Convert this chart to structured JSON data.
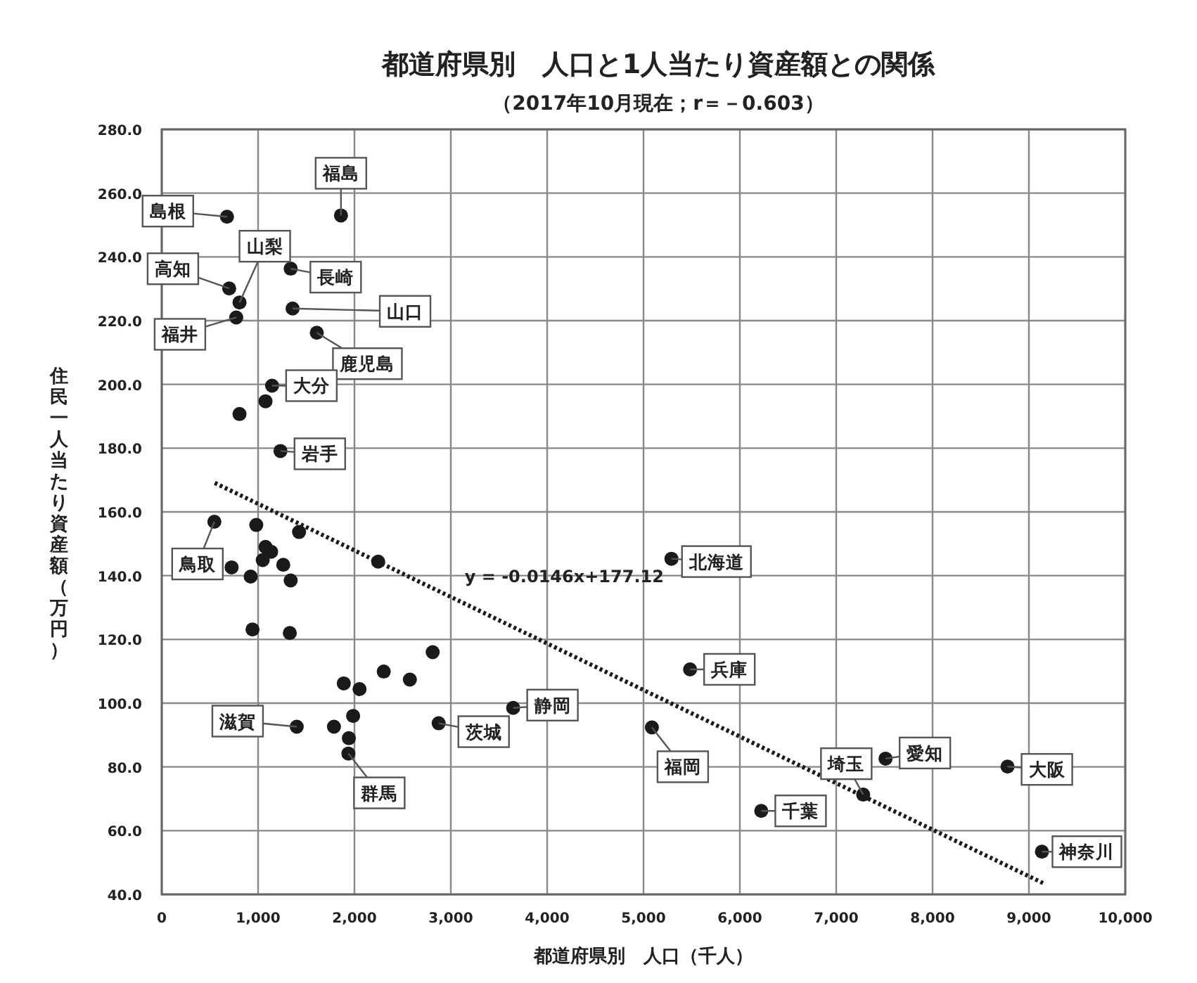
{
  "chart_data": {
    "type": "scatter",
    "title": "都道府県別　人口と1人当たり資産額との関係",
    "subtitle": "（2017年10月現在；r＝－0.603）",
    "xlabel": "都道府県別　人口（千人）",
    "ylabel": "住民一人当たり資産額（万円）",
    "xlim": [
      0,
      10000
    ],
    "ylim": [
      40,
      280
    ],
    "xticks": [
      0,
      {
        "value": 1000,
        "label": "1,000"
      },
      {
        "value": 2000,
        "label": "2,000"
      },
      {
        "value": 3000,
        "label": "3,000"
      },
      {
        "value": 4000,
        "label": "4,000"
      },
      {
        "value": 5000,
        "label": "5,000"
      },
      {
        "value": 6000,
        "label": "6,000"
      },
      {
        "value": 7000,
        "label": "7,000"
      },
      {
        "value": 8000,
        "label": "8,000"
      },
      {
        "value": 9000,
        "label": "9,000"
      },
      {
        "value": 10000,
        "label": "10,000"
      }
    ],
    "yticks": [
      {
        "value": 40,
        "label": "40.0"
      },
      {
        "value": 60,
        "label": "60.0"
      },
      {
        "value": 80,
        "label": "80.0"
      },
      {
        "value": 100,
        "label": "100.0"
      },
      {
        "value": 120,
        "label": "120.0"
      },
      {
        "value": 140,
        "label": "140.0"
      },
      {
        "value": 160,
        "label": "160.0"
      },
      {
        "value": 180,
        "label": "180.0"
      },
      {
        "value": 200,
        "label": "200.0"
      },
      {
        "value": 220,
        "label": "220.0"
      },
      {
        "value": 240,
        "label": "240.0"
      },
      {
        "value": 260,
        "label": "260.0"
      },
      {
        "value": 280,
        "label": "280.0"
      }
    ],
    "grid": true,
    "series": [
      {
        "color": "#1a1a1a",
        "marker": "circle",
        "x": [
          677,
          1860,
          700,
          807,
          773,
          1338,
          1358,
          1609,
          1145,
          1077,
          807,
          1232,
          546,
          981,
          1425,
          1077,
          1135,
          725,
          1048,
          1261,
          923,
          1338,
          2246,
          942,
          1329,
          2812,
          2304,
          2575,
          1889,
          2053,
          1401,
          1787,
          1986,
          1942,
          1937,
          2874,
          3647,
          5290,
          5483,
          5087,
          6222,
          7280,
          7512,
          8778,
          9135
        ],
        "values": [
          252.6,
          253,
          230.1,
          225.7,
          221,
          236.3,
          223.8,
          216.2,
          199.6,
          194.7,
          190.7,
          179.1,
          156.9,
          155.9,
          153.7,
          149,
          147.5,
          142.6,
          144.9,
          143.4,
          139.7,
          138.5,
          144.4,
          123.1,
          122,
          116,
          109.9,
          107.4,
          106.2,
          104.4,
          92.6,
          92.6,
          96,
          89,
          84.2,
          93.7,
          98.5,
          145.3,
          110.6,
          92.4,
          66.2,
          71.3,
          82.6,
          80.1,
          53.4
        ]
      },
      {
        "type": "line",
        "name": "y = -0.0146x+177.12",
        "color": "#1a1a1a",
        "line_style": "dotted",
        "marker": "none",
        "x": [
          550,
          9150
        ],
        "values": [
          169.1,
          43.5
        ]
      }
    ],
    "annotations": [
      {
        "text": "島根",
        "x": 677,
        "y": 252.6
      },
      {
        "text": "福島",
        "x": 1860,
        "y": 253
      },
      {
        "text": "高知",
        "x": 700,
        "y": 230.1
      },
      {
        "text": "山梨",
        "x": 807,
        "y": 225.7
      },
      {
        "text": "福井",
        "x": 773,
        "y": 221
      },
      {
        "text": "長崎",
        "x": 1338,
        "y": 236.3
      },
      {
        "text": "山口",
        "x": 1358,
        "y": 223.8
      },
      {
        "text": "鹿児島",
        "x": 1609,
        "y": 216.2
      },
      {
        "text": "大分",
        "x": 1145,
        "y": 199.6
      },
      {
        "text": "岩手",
        "x": 1232,
        "y": 179.1
      },
      {
        "text": "鳥取",
        "x": 546,
        "y": 156.9
      },
      {
        "text": "滋賀",
        "x": 1401,
        "y": 92.6
      },
      {
        "text": "群馬",
        "x": 1937,
        "y": 84.2
      },
      {
        "text": "茨城",
        "x": 2874,
        "y": 93.7
      },
      {
        "text": "静岡",
        "x": 3647,
        "y": 98.5
      },
      {
        "text": "北海道",
        "x": 5290,
        "y": 145.3
      },
      {
        "text": "兵庫",
        "x": 5483,
        "y": 110.6
      },
      {
        "text": "福岡",
        "x": 5087,
        "y": 92.4
      },
      {
        "text": "千葉",
        "x": 6222,
        "y": 66.2
      },
      {
        "text": "埼玉",
        "x": 7280,
        "y": 71.3
      },
      {
        "text": "愛知",
        "x": 7512,
        "y": 82.6
      },
      {
        "text": "大阪",
        "x": 8778,
        "y": 80.1
      },
      {
        "text": "神奈川",
        "x": 9135,
        "y": 53.4
      }
    ]
  }
}
